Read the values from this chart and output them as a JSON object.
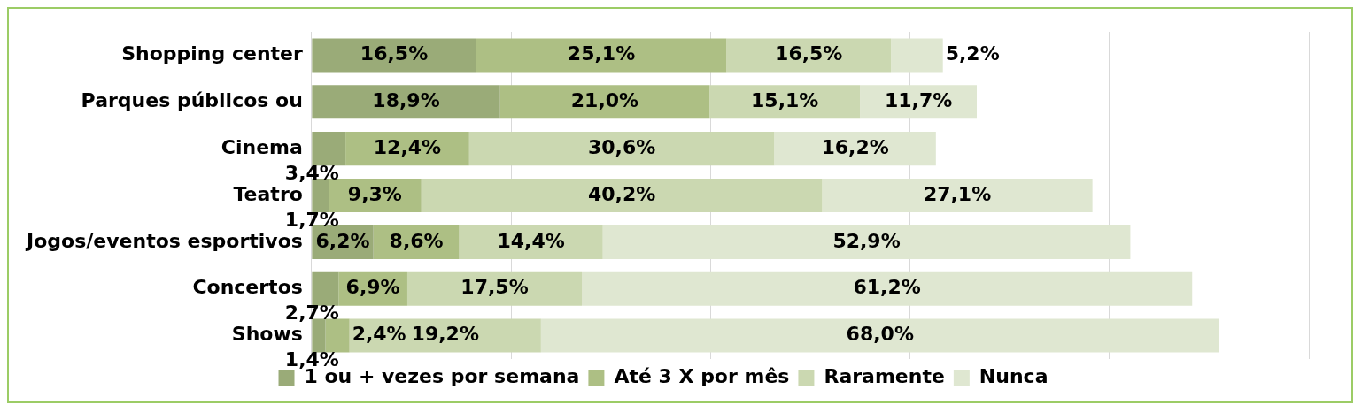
{
  "chart_data": {
    "type": "bar",
    "orientation": "horizontal",
    "stacked": true,
    "categories": [
      "Shopping center",
      "Parques públicos ou",
      "Cinema",
      "Teatro",
      "Jogos/eventos esportivos",
      "Concertos",
      "Shows"
    ],
    "series": [
      {
        "name": "1 ou + vezes por semana",
        "color": "#9aab78",
        "values": [
          16.5,
          18.9,
          3.4,
          1.7,
          6.2,
          2.7,
          1.4
        ],
        "value_labels": [
          "16,5%",
          "18,9%",
          "3,4%",
          "1,7%",
          "6,2%",
          "2,7%",
          "1,4%"
        ]
      },
      {
        "name": "Até 3 X por mês",
        "color": "#adbf84",
        "values": [
          25.1,
          21.0,
          12.4,
          9.3,
          8.6,
          6.9,
          2.4
        ],
        "value_labels": [
          "25,1%",
          "21,0%",
          "12,4%",
          "9,3%",
          "8,6%",
          "6,9%",
          "2,4%"
        ]
      },
      {
        "name": "Raramente",
        "color": "#cbd8b1",
        "values": [
          16.5,
          15.1,
          30.6,
          40.2,
          14.4,
          17.5,
          19.2
        ],
        "value_labels": [
          "16,5%",
          "15,1%",
          "30,6%",
          "40,2%",
          "14,4%",
          "17,5%",
          "19,2%"
        ]
      },
      {
        "name": "Nunca",
        "color": "#dfe7d1",
        "values": [
          5.2,
          11.7,
          16.2,
          27.1,
          52.9,
          61.2,
          68.0
        ],
        "value_labels": [
          "5,2%",
          "11,7%",
          "16,2%",
          "27,1%",
          "52,9%",
          "61,2%",
          "68,0%"
        ]
      }
    ],
    "xlim": [
      0,
      100
    ],
    "xticks": [
      {
        "value": 0,
        "label": null
      },
      {
        "value": 20,
        "label": null
      },
      {
        "value": 40,
        "label": null
      },
      {
        "value": 60,
        "label": null
      },
      {
        "value": 80,
        "label": null
      },
      {
        "value": 100,
        "label": null
      }
    ],
    "tick_labels": "y",
    "grid": "x",
    "legend": "bottom"
  }
}
